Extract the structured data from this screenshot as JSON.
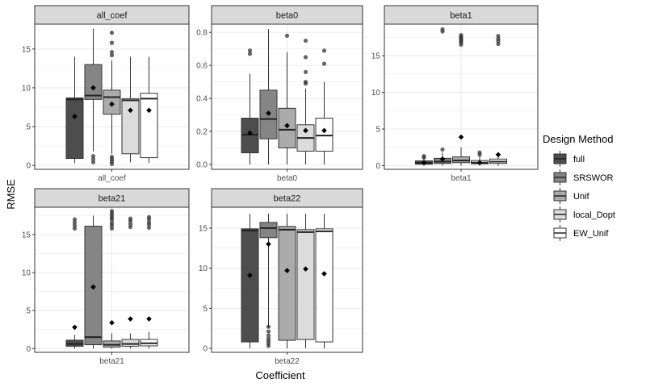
{
  "chart_data": {
    "type": "box",
    "title": "",
    "xlabel": "Coefficient",
    "ylabel": "RMSE",
    "legend": {
      "title": "Design Method",
      "position": "right",
      "entries": [
        "full",
        "SRSWOR",
        "Unif",
        "local_Dopt",
        "EW_Unif"
      ]
    },
    "colors": {
      "full": "#4d4d4d",
      "SRSWOR": "#858585",
      "Unif": "#ababab",
      "local_Dopt": "#dcdcdc",
      "EW_Unif": "#ffffff",
      "strip_bg": "#d9d9d9",
      "panel_border": "#333333",
      "grid": "#ebebeb",
      "mean_marker": "#000000"
    },
    "panels": [
      {
        "name": "all_coef",
        "category": "all_coef",
        "yticks": [
          0,
          5,
          10,
          15
        ],
        "ylim": [
          -0.5,
          18.2
        ],
        "boxes": [
          {
            "method": "full",
            "whisker_low": 0.3,
            "q1": 0.9,
            "median": 8.5,
            "q3": 8.7,
            "whisker_high": 14.0,
            "mean": 6.3,
            "outliers": []
          },
          {
            "method": "SRSWOR",
            "whisker_low": 1.8,
            "q1": 8.5,
            "median": 9.0,
            "q3": 13.0,
            "whisker_high": 17.6,
            "mean": 10.0,
            "outliers": [
              0.4,
              0.8,
              1.2
            ]
          },
          {
            "method": "Unif",
            "whisker_low": 1.5,
            "q1": 6.6,
            "median": 8.8,
            "q3": 9.7,
            "whisker_high": 13.5,
            "mean": 7.9,
            "outliers": [
              0.2,
              0.5,
              0.8,
              1.1,
              14.2,
              14.6,
              15.8,
              17.1
            ]
          },
          {
            "method": "local_Dopt",
            "whisker_low": 0.4,
            "q1": 1.5,
            "median": 8.4,
            "q3": 8.6,
            "whisker_high": 14.0,
            "mean": 7.1,
            "outliers": []
          },
          {
            "method": "EW_Unif",
            "whisker_low": 0.3,
            "q1": 1.0,
            "median": 8.6,
            "q3": 9.3,
            "whisker_high": 14.0,
            "mean": 7.1,
            "outliers": []
          }
        ]
      },
      {
        "name": "beta0",
        "category": "beta0",
        "yticks": [
          0.0,
          0.2,
          0.4,
          0.6,
          0.8
        ],
        "ylim": [
          -0.03,
          0.85
        ],
        "boxes": [
          {
            "method": "full",
            "whisker_low": 0.0,
            "q1": 0.07,
            "median": 0.18,
            "q3": 0.28,
            "whisker_high": 0.55,
            "mean": 0.19,
            "outliers": [
              0.67,
              0.69
            ]
          },
          {
            "method": "SRSWOR",
            "whisker_low": 0.0,
            "q1": 0.155,
            "median": 0.275,
            "q3": 0.45,
            "whisker_high": 0.82,
            "mean": 0.31,
            "outliers": []
          },
          {
            "method": "Unif",
            "whisker_low": 0.0,
            "q1": 0.1,
            "median": 0.21,
            "q3": 0.34,
            "whisker_high": 0.68,
            "mean": 0.235,
            "outliers": [
              0.78
            ]
          },
          {
            "method": "local_Dopt",
            "whisker_low": 0.0,
            "q1": 0.08,
            "median": 0.16,
            "q3": 0.24,
            "whisker_high": 0.46,
            "mean": 0.205,
            "outliers": [
              0.49,
              0.5,
              0.56,
              0.65,
              0.75
            ]
          },
          {
            "method": "EW_Unif",
            "whisker_low": 0.0,
            "q1": 0.08,
            "median": 0.175,
            "q3": 0.28,
            "whisker_high": 0.5,
            "mean": 0.205,
            "outliers": [
              0.61,
              0.69
            ]
          }
        ]
      },
      {
        "name": "beta1",
        "category": "beta1",
        "yticks": [
          0,
          5,
          10,
          15
        ],
        "ylim": [
          -0.5,
          19.3
        ],
        "boxes": [
          {
            "method": "full",
            "whisker_low": 0.0,
            "q1": 0.2,
            "median": 0.35,
            "q3": 0.65,
            "whisker_high": 1.0,
            "mean": 0.4,
            "outliers": [
              1.1,
              1.3
            ]
          },
          {
            "method": "SRSWOR",
            "whisker_low": 0.0,
            "q1": 0.3,
            "median": 0.55,
            "q3": 1.0,
            "whisker_high": 1.8,
            "mean": 0.9,
            "outliers": [
              2.2,
              18.3,
              18.6
            ]
          },
          {
            "method": "Unif",
            "whisker_low": 0.0,
            "q1": 0.4,
            "median": 0.7,
            "q3": 1.2,
            "whisker_high": 2.5,
            "mean": 3.9,
            "outliers": [
              16.5,
              16.8,
              17.0,
              17.2,
              17.4,
              17.6,
              17.8
            ]
          },
          {
            "method": "local_Dopt",
            "whisker_low": 0.0,
            "q1": 0.25,
            "median": 0.4,
            "q3": 0.7,
            "whisker_high": 1.3,
            "mean": 0.4,
            "outliers": [
              1.5,
              1.8
            ]
          },
          {
            "method": "EW_Unif",
            "whisker_low": 0.0,
            "q1": 0.3,
            "median": 0.55,
            "q3": 0.9,
            "whisker_high": 1.8,
            "mean": 1.5,
            "outliers": [
              16.6,
              17.0,
              17.3,
              17.7
            ]
          }
        ]
      },
      {
        "name": "beta21",
        "category": "beta21",
        "yticks": [
          0,
          5,
          10,
          15
        ],
        "ylim": [
          -0.5,
          18.6
        ],
        "boxes": [
          {
            "method": "full",
            "whisker_low": 0.0,
            "q1": 0.3,
            "median": 0.6,
            "q3": 1.1,
            "whisker_high": 1.8,
            "mean": 2.8,
            "outliers": [
              15.8,
              16.2,
              16.6,
              17.0
            ]
          },
          {
            "method": "SRSWOR",
            "whisker_low": 0.0,
            "q1": 0.5,
            "median": 1.5,
            "q3": 16.1,
            "whisker_high": 17.5,
            "mean": 8.1,
            "outliers": []
          },
          {
            "method": "Unif",
            "whisker_low": 0.0,
            "q1": 0.2,
            "median": 0.5,
            "q3": 1.0,
            "whisker_high": 2.0,
            "mean": 3.4,
            "outliers": [
              15.8,
              16.2,
              16.5,
              16.9,
              17.2,
              17.5,
              17.8,
              18.1
            ]
          },
          {
            "method": "local_Dopt",
            "whisker_low": 0.0,
            "q1": 0.3,
            "median": 0.6,
            "q3": 1.2,
            "whisker_high": 2.0,
            "mean": 3.9,
            "outliers": [
              16.0,
              16.4,
              16.8,
              17.1
            ]
          },
          {
            "method": "EW_Unif",
            "whisker_low": 0.0,
            "q1": 0.35,
            "median": 0.7,
            "q3": 1.2,
            "whisker_high": 2.2,
            "mean": 3.9,
            "outliers": [
              15.9,
              16.3,
              16.6,
              17.0,
              17.3
            ]
          }
        ]
      },
      {
        "name": "beta22",
        "category": "beta22",
        "yticks": [
          0,
          5,
          10,
          15
        ],
        "ylim": [
          -0.5,
          17.6
        ],
        "boxes": [
          {
            "method": "full",
            "whisker_low": 0.0,
            "q1": 0.8,
            "median": 14.7,
            "q3": 14.9,
            "whisker_high": 16.8,
            "mean": 9.1,
            "outliers": []
          },
          {
            "method": "SRSWOR",
            "whisker_low": 2.5,
            "q1": 13.8,
            "median": 15.0,
            "q3": 15.7,
            "whisker_high": 16.8,
            "mean": 13.0,
            "outliers": [
              0.3,
              0.6,
              0.9,
              1.2,
              1.6,
              2.1,
              2.7
            ]
          },
          {
            "method": "Unif",
            "whisker_low": 0.0,
            "q1": 1.0,
            "median": 14.8,
            "q3": 15.2,
            "whisker_high": 16.8,
            "mean": 9.7,
            "outliers": []
          },
          {
            "method": "local_Dopt",
            "whisker_low": 0.0,
            "q1": 1.1,
            "median": 14.5,
            "q3": 14.8,
            "whisker_high": 16.8,
            "mean": 9.9,
            "outliers": []
          },
          {
            "method": "EW_Unif",
            "whisker_low": 0.0,
            "q1": 0.8,
            "median": 14.6,
            "q3": 14.9,
            "whisker_high": 16.8,
            "mean": 9.3,
            "outliers": []
          }
        ]
      }
    ]
  }
}
